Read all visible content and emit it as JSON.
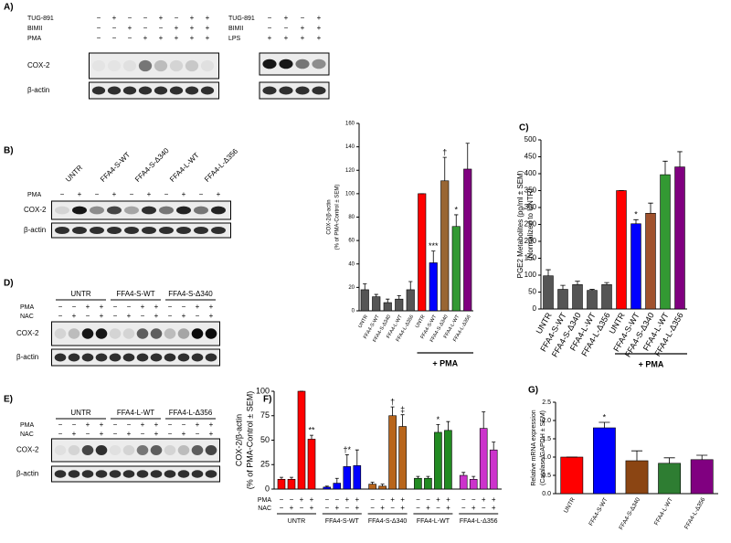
{
  "blots": [
    {
      "panel": "A)",
      "rows": [
        {
          "name": "TUG-891",
          "signs": [
            "−",
            "+",
            "−",
            "−",
            "+",
            "−",
            "+",
            "+"
          ]
        },
        {
          "name": "BIMII",
          "signs": [
            "−",
            "−",
            "+",
            "−",
            "−",
            "+",
            "+",
            "+"
          ]
        },
        {
          "name": "PMA",
          "signs": [
            "−",
            "−",
            "−",
            "+",
            "+",
            "+",
            "+",
            "+"
          ]
        }
      ],
      "bands": [
        "COX-2",
        "β-actin"
      ]
    },
    {
      "rows": [
        {
          "name": "TUG-891",
          "signs": [
            "−",
            "+",
            "−",
            "+"
          ]
        },
        {
          "name": "BIMII",
          "signs": [
            "−",
            "−",
            "+",
            "+"
          ]
        },
        {
          "name": "LPS",
          "signs": [
            "+",
            "+",
            "+",
            "+"
          ]
        }
      ]
    },
    {
      "panel": "B)",
      "groups": [
        "UNTR",
        "FFA4-S-WT",
        "FFA4-S-Δ340",
        "FFA4-L-WT",
        "FFA4-L-Δ356"
      ],
      "rows": [
        {
          "name": "PMA",
          "signs": [
            "−",
            "+",
            "−",
            "+",
            "−",
            "+",
            "−",
            "+",
            "−",
            "+"
          ]
        }
      ],
      "bands": [
        "COX-2",
        "β-actin"
      ]
    },
    {
      "panel": "D)",
      "groups": [
        "UNTR",
        "FFA4-S-WT",
        "FFA4-S-Δ340"
      ],
      "rows": [
        {
          "name": "PMA",
          "signs": [
            "−",
            "−",
            "+",
            "+",
            "−",
            "−",
            "+",
            "+",
            "−",
            "−",
            "+",
            "+"
          ]
        },
        {
          "name": "NAC",
          "signs": [
            "−",
            "+",
            "−",
            "+",
            "−",
            "+",
            "−",
            "+",
            "−",
            "+",
            "−",
            "+"
          ]
        }
      ],
      "bands": [
        "COX-2",
        "β-actin"
      ]
    },
    {
      "panel": "E)",
      "groups": [
        "UNTR",
        "FFA4-L-WT",
        "FFA4-L-Δ356"
      ],
      "rows": [
        {
          "name": "PMA",
          "signs": [
            "−",
            "−",
            "+",
            "+",
            "−",
            "−",
            "+",
            "+",
            "−",
            "−",
            "+",
            "+"
          ]
        },
        {
          "name": "NAC",
          "signs": [
            "−",
            "+",
            "−",
            "+",
            "−",
            "+",
            "−",
            "+",
            "−",
            "+",
            "−",
            "+"
          ]
        }
      ],
      "bands": [
        "COX-2",
        "β-actin"
      ]
    }
  ],
  "chart_data": [
    {
      "type": "bar",
      "ylabel": [
        "COX-2/β-actin",
        "(% of PMA-Control ± SEM)"
      ],
      "categories": [
        "UNTR",
        "FFA4-S-WT",
        "FFA4-S-Δ340",
        "FFA4-L-WT",
        "FFA4-L-Δ356",
        "UNTR",
        "FFA4-S-WT",
        "FFA4-S-Δ340",
        "FFA4-L-WT",
        "FFA4-L-Δ356"
      ],
      "values": [
        18,
        12,
        7,
        10,
        18,
        100,
        41,
        111,
        72,
        121
      ],
      "errors": [
        5,
        2,
        3,
        3,
        7,
        0,
        10,
        20,
        10,
        22
      ],
      "colors": [
        "#555555",
        "#555555",
        "#555555",
        "#555555",
        "#555555",
        "#ff0000",
        "#0000ff",
        "#996633",
        "#339933",
        "#800080"
      ],
      "significance": [
        null,
        null,
        null,
        null,
        null,
        null,
        "***",
        "†",
        "*",
        null
      ],
      "bracket_label": "+ PMA",
      "ylim": [
        0,
        160
      ],
      "yticks": [
        0,
        20,
        40,
        60,
        80,
        100,
        120,
        140,
        160
      ]
    },
    {
      "type": "bar",
      "panel": "C)",
      "ylabel": [
        "PGE2 Metabolites (pg/ml ± SEM)",
        "(Normalized to UNTR)"
      ],
      "categories": [
        "UNTR",
        "FFA4-S-WT",
        "FFA4-S-Δ340",
        "FFA4-L-WT",
        "FFA4-L-Δ356",
        "UNTR",
        "FFA4-S-WT",
        "FFA4-S-Δ340",
        "FFA4-L-WT",
        "FFA4-L-Δ356"
      ],
      "values": [
        98,
        58,
        72,
        55,
        72,
        350,
        252,
        283,
        397,
        420
      ],
      "errors": [
        18,
        12,
        10,
        3,
        6,
        0,
        12,
        30,
        40,
        45
      ],
      "colors": [
        "#555555",
        "#555555",
        "#555555",
        "#555555",
        "#555555",
        "#ff0000",
        "#0000ff",
        "#a0522d",
        "#339933",
        "#800080"
      ],
      "significance": [
        null,
        null,
        null,
        null,
        null,
        null,
        "*",
        null,
        null,
        null
      ],
      "bracket_label": "+ PMA",
      "ylim": [
        0,
        500
      ],
      "yticks": [
        0,
        50,
        100,
        150,
        200,
        250,
        300,
        350,
        400,
        450,
        500
      ]
    },
    {
      "type": "bar",
      "panel": "F)",
      "ylabel": [
        "COX-2/β-actin",
        "(% of PMA-Control ± SEM)"
      ],
      "groups": [
        {
          "name": "UNTR",
          "color": "#ff0000",
          "values": [
            10,
            10,
            100,
            51
          ],
          "errors": [
            2,
            2,
            0,
            4
          ],
          "significance": [
            null,
            null,
            null,
            "**"
          ]
        },
        {
          "name": "FFA4-S-WT",
          "color": "#0000ff",
          "values": [
            2,
            6,
            23,
            24
          ],
          "errors": [
            1,
            5,
            12,
            16
          ],
          "significance": [
            null,
            null,
            "†*",
            null
          ]
        },
        {
          "name": "FFA4-S-Δ340",
          "color": "#b8651b",
          "values": [
            5,
            3,
            75,
            64
          ],
          "errors": [
            2,
            2,
            9,
            12
          ],
          "significance": [
            null,
            null,
            "†",
            "‡"
          ]
        },
        {
          "name": "FFA4-L-WT",
          "color": "#228b22",
          "values": [
            11,
            11,
            58,
            60
          ],
          "errors": [
            2,
            2,
            8,
            9
          ],
          "significance": [
            null,
            null,
            "*",
            null
          ]
        },
        {
          "name": "FFA4-L-Δ356",
          "color": "#cc33cc",
          "values": [
            14,
            10,
            62,
            40
          ],
          "errors": [
            3,
            3,
            17,
            8
          ],
          "significance": [
            null,
            null,
            null,
            null
          ]
        }
      ],
      "rows": [
        {
          "name": "PMA",
          "signs": [
            "−",
            "−",
            "+",
            "+",
            "−",
            "−",
            "+",
            "+",
            "−",
            "−",
            "+",
            "+",
            "−",
            "−",
            "+",
            "+",
            "−",
            "−",
            "+",
            "+"
          ]
        },
        {
          "name": "NAC",
          "signs": [
            "−",
            "+",
            "−",
            "+",
            "−",
            "+",
            "−",
            "+",
            "−",
            "+",
            "−",
            "+",
            "−",
            "+",
            "−",
            "+",
            "−",
            "+",
            "−",
            "+"
          ]
        }
      ],
      "ylim": [
        0,
        100
      ],
      "yticks": [
        0,
        25,
        50,
        75,
        100
      ]
    },
    {
      "type": "bar",
      "panel": "G)",
      "ylabel": [
        "Relative mRNA expression",
        "(Catalase/GAPDH ± SEM)"
      ],
      "categories": [
        "UNTR",
        "FFA4-S-WT",
        "FFA4-S-Δ340",
        "FFA4-L-WT",
        "FFA4-L-Δ356"
      ],
      "values": [
        1.0,
        1.8,
        0.9,
        0.83,
        0.93
      ],
      "errors": [
        0,
        0.15,
        0.27,
        0.15,
        0.12
      ],
      "colors": [
        "#ff0000",
        "#0000ff",
        "#8b4513",
        "#2e7d32",
        "#800080"
      ],
      "significance": [
        null,
        "*",
        null,
        null,
        null
      ],
      "ylim": [
        0,
        2.5
      ],
      "yticks": [
        {
          "value": 0,
          "label": "0.0"
        },
        0.5,
        {
          "value": 1,
          "label": "1.0"
        },
        1.5,
        {
          "value": 2,
          "label": "2.0"
        },
        2.5
      ]
    }
  ]
}
